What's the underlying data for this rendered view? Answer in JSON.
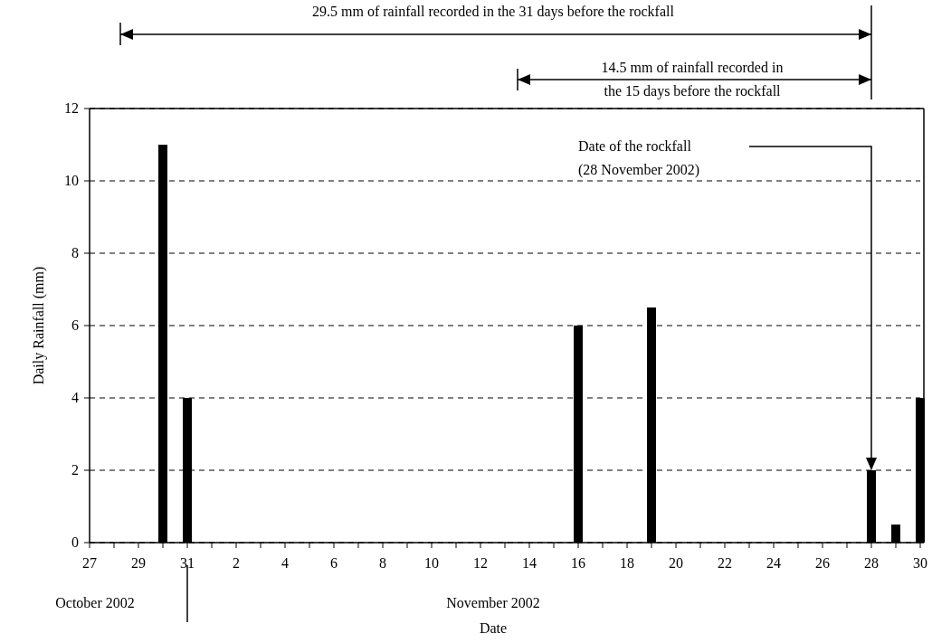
{
  "chart_data": {
    "type": "bar",
    "xlabel": "Date",
    "ylabel": "Daily Rainfall (mm)",
    "x": [
      "2002-10-30",
      "2002-10-31",
      "2002-11-16",
      "2002-11-19",
      "2002-11-28",
      "2002-11-29",
      "2002-11-30"
    ],
    "values": [
      11,
      4,
      6,
      6.5,
      2,
      0.5,
      4
    ],
    "color": "#000000",
    "xlim": [
      "2002-10-27",
      "2002-11-30"
    ],
    "xticks": [
      {
        "value": "2002-10-27",
        "label": "27"
      },
      {
        "value": "2002-10-28",
        "label": null
      },
      {
        "value": "2002-10-29",
        "label": "29"
      },
      {
        "value": "2002-10-30",
        "label": null
      },
      {
        "value": "2002-10-31",
        "label": "31"
      },
      {
        "value": "2002-11-01",
        "label": null
      },
      {
        "value": "2002-11-02",
        "label": "2"
      },
      {
        "value": "2002-11-03",
        "label": null
      },
      {
        "value": "2002-11-04",
        "label": "4"
      },
      {
        "value": "2002-11-05",
        "label": null
      },
      {
        "value": "2002-11-06",
        "label": "6"
      },
      {
        "value": "2002-11-07",
        "label": null
      },
      {
        "value": "2002-11-08",
        "label": "8"
      },
      {
        "value": "2002-11-09",
        "label": null
      },
      {
        "value": "2002-11-10",
        "label": "10"
      },
      {
        "value": "2002-11-11",
        "label": null
      },
      {
        "value": "2002-11-12",
        "label": "12"
      },
      {
        "value": "2002-11-13",
        "label": null
      },
      {
        "value": "2002-11-14",
        "label": "14"
      },
      {
        "value": "2002-11-15",
        "label": null
      },
      {
        "value": "2002-11-16",
        "label": "16"
      },
      {
        "value": "2002-11-17",
        "label": null
      },
      {
        "value": "2002-11-18",
        "label": "18"
      },
      {
        "value": "2002-11-19",
        "label": null
      },
      {
        "value": "2002-11-20",
        "label": "20"
      },
      {
        "value": "2002-11-21",
        "label": null
      },
      {
        "value": "2002-11-22",
        "label": "22"
      },
      {
        "value": "2002-11-23",
        "label": null
      },
      {
        "value": "2002-11-24",
        "label": "24"
      },
      {
        "value": "2002-11-25",
        "label": null
      },
      {
        "value": "2002-11-26",
        "label": "26"
      },
      {
        "value": "2002-11-27",
        "label": null
      },
      {
        "value": "2002-11-28",
        "label": "28"
      },
      {
        "value": "2002-11-29",
        "label": null
      },
      {
        "value": "2002-11-30",
        "label": "30"
      }
    ],
    "ylim": [
      0,
      12
    ],
    "yticks": [
      0,
      2,
      4,
      6,
      8,
      10,
      12
    ],
    "grid": "y",
    "line_style": "dashed",
    "annotations": [
      "29.5 mm of rainfall recorded in the 31 days before the rockfall",
      "14.5 mm of rainfall recorded in\nthe 15 days before the rockfall",
      "Date of the rockfall\n(28 November 2002)",
      "October 2002",
      "November 2002"
    ]
  }
}
